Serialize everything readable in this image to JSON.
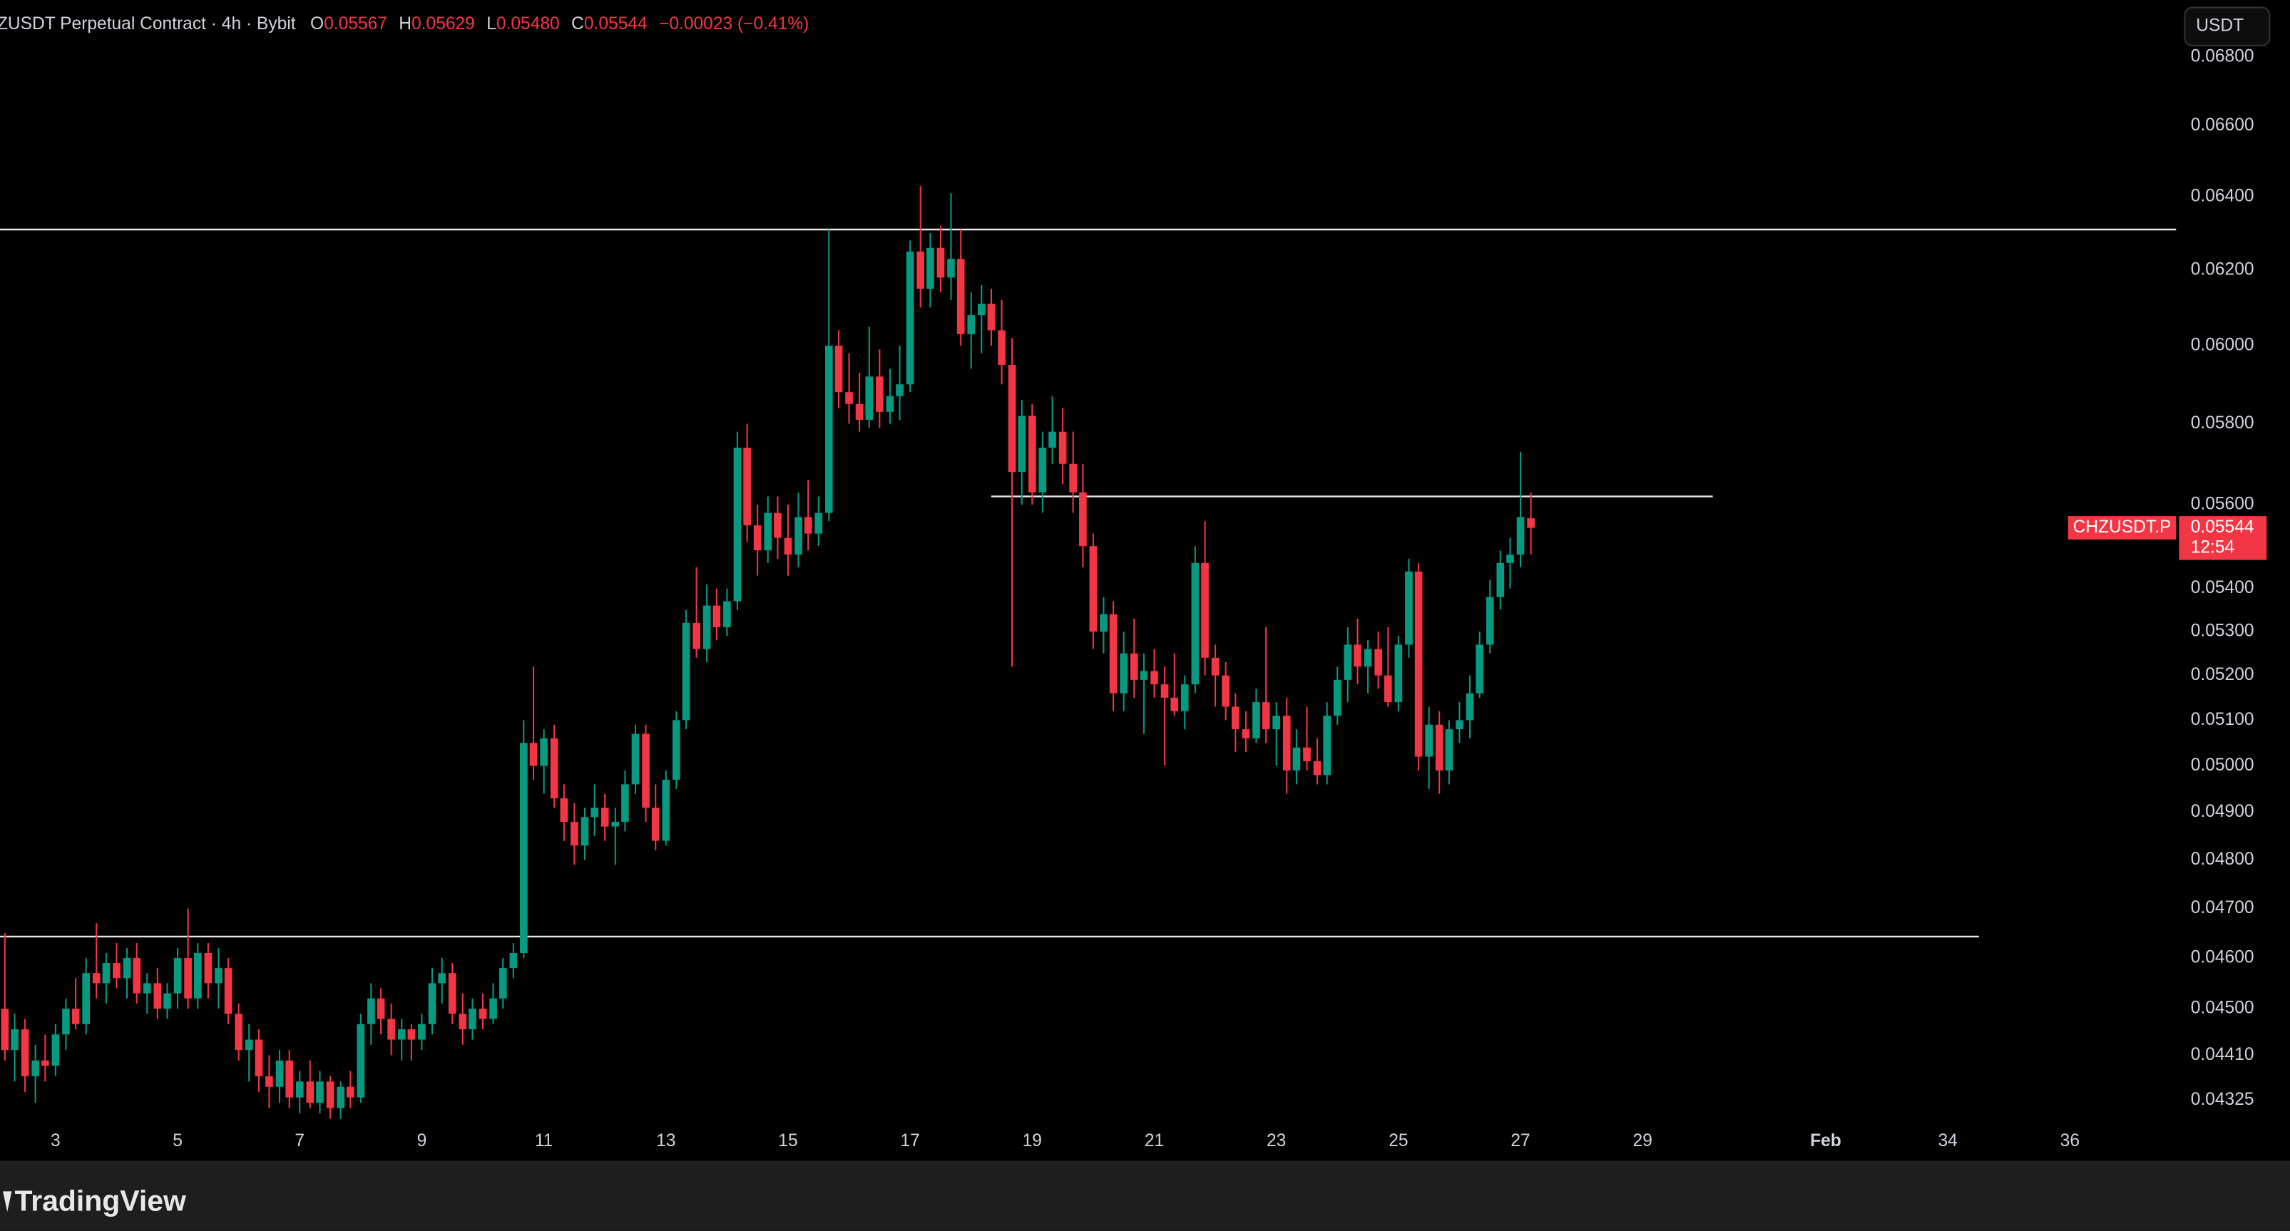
{
  "chart_data": {
    "type": "candlestick",
    "title": "ZUSDT Perpetual Contract · 4h · Bybit",
    "ohlc_header": [
      {
        "key": "O",
        "value": "0.05567"
      },
      {
        "key": "H",
        "value": "0.05629"
      },
      {
        "key": "L",
        "value": "0.05480"
      },
      {
        "key": "C",
        "value": "0.05544"
      }
    ],
    "change": "−0.00023 (−0.41%)",
    "currency_button": "USDT",
    "price_tag": {
      "symbol": "CHZUSDT.P",
      "price": "0.05544",
      "countdown": "12:54"
    },
    "brand": "TradingView",
    "up_color": "#089981",
    "down_color": "#f23645",
    "log_scale": true,
    "grid": false,
    "xlim": [
      2.09,
      37.74
    ],
    "xticks": [
      3,
      5,
      7,
      9,
      11,
      13,
      15,
      17,
      19,
      21,
      23,
      25,
      27,
      29,
      {
        "value": 32,
        "label": "Feb"
      },
      34,
      36
    ],
    "ylim": [
      0.0428,
      0.0697
    ],
    "yticks": [
      {
        "value": 0.068,
        "label": "0.06800"
      },
      {
        "value": 0.066,
        "label": "0.06600"
      },
      {
        "value": 0.064,
        "label": "0.06400"
      },
      {
        "value": 0.062,
        "label": "0.06200"
      },
      {
        "value": 0.06,
        "label": "0.06000"
      },
      {
        "value": 0.058,
        "label": "0.05800"
      },
      {
        "value": 0.056,
        "label": "0.05600"
      },
      {
        "value": 0.054,
        "label": "0.05400"
      },
      {
        "value": 0.053,
        "label": "0.05300"
      },
      {
        "value": 0.052,
        "label": "0.05200"
      },
      {
        "value": 0.051,
        "label": "0.05100"
      },
      {
        "value": 0.05,
        "label": "0.05000"
      },
      {
        "value": 0.049,
        "label": "0.04900"
      },
      {
        "value": 0.048,
        "label": "0.04800"
      },
      {
        "value": 0.047,
        "label": "0.04700"
      },
      {
        "value": 0.046,
        "label": "0.04600"
      },
      {
        "value": 0.045,
        "label": "0.04500"
      },
      {
        "value": 0.0441,
        "label": "0.04410"
      },
      {
        "value": 0.04325,
        "label": "0.04325"
      }
    ],
    "levels": [
      {
        "value": 0.0631,
        "x": [
          2.09,
          37.74
        ]
      },
      {
        "value": 0.0562,
        "x": [
          18.33,
          30.15
        ]
      },
      {
        "value": 0.04643,
        "x": [
          2.09,
          34.51
        ]
      }
    ],
    "candles": [
      [
        2.17,
        0.045,
        0.0465,
        0.044,
        0.0442
      ],
      [
        2.33,
        0.0442,
        0.0449,
        0.0436,
        0.0446
      ],
      [
        2.5,
        0.0446,
        0.0448,
        0.0434,
        0.0437
      ],
      [
        2.67,
        0.0437,
        0.0443,
        0.0432,
        0.044
      ],
      [
        2.83,
        0.044,
        0.0445,
        0.0436,
        0.0439
      ],
      [
        3,
        0.0439,
        0.0447,
        0.0437,
        0.0445
      ],
      [
        3.17,
        0.0445,
        0.0452,
        0.0442,
        0.045
      ],
      [
        3.33,
        0.045,
        0.0456,
        0.0446,
        0.0447
      ],
      [
        3.5,
        0.0447,
        0.046,
        0.0445,
        0.0457
      ],
      [
        3.67,
        0.0457,
        0.0467,
        0.0452,
        0.0455
      ],
      [
        3.83,
        0.0455,
        0.0461,
        0.0451,
        0.0459
      ],
      [
        4,
        0.0459,
        0.0463,
        0.0454,
        0.0456
      ],
      [
        4.17,
        0.0456,
        0.0462,
        0.0452,
        0.046
      ],
      [
        4.33,
        0.046,
        0.0463,
        0.0451,
        0.0453
      ],
      [
        4.5,
        0.0453,
        0.0457,
        0.0449,
        0.0455
      ],
      [
        4.67,
        0.0455,
        0.0458,
        0.0448,
        0.045
      ],
      [
        4.83,
        0.045,
        0.0455,
        0.0448,
        0.0453
      ],
      [
        5,
        0.0453,
        0.0462,
        0.045,
        0.046
      ],
      [
        5.17,
        0.046,
        0.047,
        0.045,
        0.0452
      ],
      [
        5.33,
        0.0452,
        0.0463,
        0.045,
        0.0461
      ],
      [
        5.5,
        0.0461,
        0.0463,
        0.0452,
        0.0455
      ],
      [
        5.67,
        0.0455,
        0.0462,
        0.045,
        0.0458
      ],
      [
        5.83,
        0.0458,
        0.046,
        0.0447,
        0.0449
      ],
      [
        6,
        0.0449,
        0.0451,
        0.044,
        0.0442
      ],
      [
        6.17,
        0.0442,
        0.0447,
        0.0436,
        0.0444
      ],
      [
        6.33,
        0.0444,
        0.0446,
        0.0434,
        0.0437
      ],
      [
        6.5,
        0.0437,
        0.0441,
        0.0431,
        0.0435
      ],
      [
        6.67,
        0.0435,
        0.0442,
        0.0432,
        0.044
      ],
      [
        6.83,
        0.044,
        0.0442,
        0.0431,
        0.0433
      ],
      [
        7,
        0.0433,
        0.0438,
        0.043,
        0.0436
      ],
      [
        7.17,
        0.0436,
        0.044,
        0.0431,
        0.0432
      ],
      [
        7.33,
        0.0432,
        0.0438,
        0.043,
        0.0436
      ],
      [
        7.5,
        0.0436,
        0.0437,
        0.0429,
        0.0431
      ],
      [
        7.67,
        0.0431,
        0.0436,
        0.0429,
        0.0435
      ],
      [
        7.83,
        0.0435,
        0.0438,
        0.0431,
        0.0433
      ],
      [
        8,
        0.0433,
        0.0449,
        0.0432,
        0.0447
      ],
      [
        8.17,
        0.0447,
        0.0455,
        0.0443,
        0.0452
      ],
      [
        8.33,
        0.0452,
        0.0454,
        0.0445,
        0.0448
      ],
      [
        8.5,
        0.0448,
        0.0451,
        0.0441,
        0.0444
      ],
      [
        8.67,
        0.0444,
        0.0448,
        0.044,
        0.0446
      ],
      [
        8.83,
        0.0446,
        0.0447,
        0.044,
        0.0444
      ],
      [
        9,
        0.0444,
        0.0449,
        0.0442,
        0.0447
      ],
      [
        9.17,
        0.0447,
        0.0458,
        0.0445,
        0.0455
      ],
      [
        9.33,
        0.0455,
        0.046,
        0.0451,
        0.0457
      ],
      [
        9.5,
        0.0457,
        0.0459,
        0.0447,
        0.0449
      ],
      [
        9.67,
        0.0449,
        0.0453,
        0.0443,
        0.0446
      ],
      [
        9.83,
        0.0446,
        0.0452,
        0.0444,
        0.045
      ],
      [
        10,
        0.045,
        0.0453,
        0.0446,
        0.0448
      ],
      [
        10.17,
        0.0448,
        0.0455,
        0.0447,
        0.0452
      ],
      [
        10.33,
        0.0452,
        0.046,
        0.045,
        0.0458
      ],
      [
        10.5,
        0.0458,
        0.0463,
        0.0456,
        0.0461
      ],
      [
        10.67,
        0.0461,
        0.051,
        0.046,
        0.0505
      ],
      [
        10.83,
        0.0505,
        0.0522,
        0.0497,
        0.05
      ],
      [
        11,
        0.05,
        0.0508,
        0.0494,
        0.0506
      ],
      [
        11.17,
        0.0506,
        0.0509,
        0.0491,
        0.0493
      ],
      [
        11.33,
        0.0493,
        0.0496,
        0.0484,
        0.0488
      ],
      [
        11.5,
        0.0488,
        0.0492,
        0.0479,
        0.0483
      ],
      [
        11.67,
        0.0483,
        0.0491,
        0.048,
        0.0489
      ],
      [
        11.83,
        0.0489,
        0.0496,
        0.0485,
        0.0491
      ],
      [
        12,
        0.0491,
        0.0494,
        0.0484,
        0.0487
      ],
      [
        12.17,
        0.0487,
        0.0491,
        0.0479,
        0.0488
      ],
      [
        12.33,
        0.0488,
        0.0499,
        0.0486,
        0.0496
      ],
      [
        12.5,
        0.0496,
        0.0509,
        0.0494,
        0.0507
      ],
      [
        12.67,
        0.0507,
        0.0509,
        0.0488,
        0.0491
      ],
      [
        12.83,
        0.0491,
        0.0496,
        0.0482,
        0.0484
      ],
      [
        13,
        0.0484,
        0.0499,
        0.0483,
        0.0497
      ],
      [
        13.17,
        0.0497,
        0.0512,
        0.0495,
        0.051
      ],
      [
        13.33,
        0.051,
        0.0535,
        0.0508,
        0.0532
      ],
      [
        13.5,
        0.0532,
        0.0545,
        0.0524,
        0.0526
      ],
      [
        13.67,
        0.0526,
        0.0541,
        0.0523,
        0.0536
      ],
      [
        13.83,
        0.0536,
        0.054,
        0.0528,
        0.0531
      ],
      [
        14,
        0.0531,
        0.054,
        0.0529,
        0.0537
      ],
      [
        14.17,
        0.0537,
        0.0578,
        0.0535,
        0.0574
      ],
      [
        14.33,
        0.0574,
        0.058,
        0.0551,
        0.0555
      ],
      [
        14.5,
        0.0555,
        0.056,
        0.0543,
        0.0549
      ],
      [
        14.67,
        0.0549,
        0.0562,
        0.0546,
        0.0558
      ],
      [
        14.83,
        0.0558,
        0.0562,
        0.0547,
        0.0552
      ],
      [
        15,
        0.0552,
        0.056,
        0.0543,
        0.0548
      ],
      [
        15.17,
        0.0548,
        0.0563,
        0.0545,
        0.0557
      ],
      [
        15.33,
        0.0557,
        0.0566,
        0.0549,
        0.0553
      ],
      [
        15.5,
        0.0553,
        0.0562,
        0.055,
        0.0558
      ],
      [
        15.67,
        0.0558,
        0.0631,
        0.0556,
        0.06
      ],
      [
        15.83,
        0.06,
        0.0604,
        0.0584,
        0.0588
      ],
      [
        16,
        0.0588,
        0.0598,
        0.058,
        0.0585
      ],
      [
        16.17,
        0.0585,
        0.0593,
        0.0578,
        0.0581
      ],
      [
        16.33,
        0.0581,
        0.0605,
        0.0579,
        0.0592
      ],
      [
        16.5,
        0.0592,
        0.0599,
        0.0579,
        0.0583
      ],
      [
        16.67,
        0.0583,
        0.0594,
        0.058,
        0.0587
      ],
      [
        16.83,
        0.0587,
        0.06,
        0.0581,
        0.059
      ],
      [
        17,
        0.059,
        0.0628,
        0.0588,
        0.0625
      ],
      [
        17.17,
        0.0625,
        0.0643,
        0.061,
        0.0615
      ],
      [
        17.33,
        0.0615,
        0.063,
        0.061,
        0.0626
      ],
      [
        17.5,
        0.0626,
        0.0632,
        0.0614,
        0.0618
      ],
      [
        17.67,
        0.0618,
        0.0641,
        0.0612,
        0.0623
      ],
      [
        17.83,
        0.0623,
        0.0631,
        0.06,
        0.0603
      ],
      [
        18,
        0.0603,
        0.0614,
        0.0594,
        0.0608
      ],
      [
        18.17,
        0.0608,
        0.0616,
        0.0598,
        0.0611
      ],
      [
        18.33,
        0.0611,
        0.0615,
        0.06,
        0.0604
      ],
      [
        18.5,
        0.0604,
        0.0612,
        0.059,
        0.0595
      ],
      [
        18.67,
        0.0595,
        0.0602,
        0.0522,
        0.0568
      ],
      [
        18.83,
        0.0568,
        0.0586,
        0.056,
        0.0582
      ],
      [
        19,
        0.0582,
        0.0585,
        0.056,
        0.0563
      ],
      [
        19.17,
        0.0563,
        0.0578,
        0.0558,
        0.0574
      ],
      [
        19.33,
        0.0574,
        0.0587,
        0.057,
        0.0578
      ],
      [
        19.5,
        0.0578,
        0.0584,
        0.0565,
        0.057
      ],
      [
        19.67,
        0.057,
        0.0578,
        0.0558,
        0.0563
      ],
      [
        19.83,
        0.0563,
        0.057,
        0.0545,
        0.055
      ],
      [
        20,
        0.055,
        0.0553,
        0.0526,
        0.053
      ],
      [
        20.17,
        0.053,
        0.0538,
        0.0525,
        0.0534
      ],
      [
        20.33,
        0.0534,
        0.0537,
        0.0512,
        0.0516
      ],
      [
        20.5,
        0.0516,
        0.053,
        0.0512,
        0.0525
      ],
      [
        20.67,
        0.0525,
        0.0533,
        0.0515,
        0.0519
      ],
      [
        20.83,
        0.0519,
        0.0525,
        0.0507,
        0.0521
      ],
      [
        21,
        0.0521,
        0.0526,
        0.0515,
        0.0518
      ],
      [
        21.17,
        0.0518,
        0.0522,
        0.05,
        0.0515
      ],
      [
        21.33,
        0.0515,
        0.0525,
        0.0511,
        0.0512
      ],
      [
        21.5,
        0.0512,
        0.052,
        0.0508,
        0.0518
      ],
      [
        21.67,
        0.0518,
        0.055,
        0.0516,
        0.0546
      ],
      [
        21.83,
        0.0546,
        0.0556,
        0.052,
        0.0524
      ],
      [
        22,
        0.0524,
        0.0527,
        0.0513,
        0.052
      ],
      [
        22.17,
        0.052,
        0.0523,
        0.051,
        0.0513
      ],
      [
        22.33,
        0.0513,
        0.0516,
        0.0503,
        0.0508
      ],
      [
        22.5,
        0.0508,
        0.0512,
        0.0503,
        0.0506
      ],
      [
        22.67,
        0.0506,
        0.0517,
        0.0505,
        0.0514
      ],
      [
        22.83,
        0.0514,
        0.0531,
        0.0505,
        0.0508
      ],
      [
        23,
        0.0508,
        0.0514,
        0.05,
        0.0511
      ],
      [
        23.17,
        0.0511,
        0.0515,
        0.0494,
        0.0499
      ],
      [
        23.33,
        0.0499,
        0.0508,
        0.0496,
        0.0504
      ],
      [
        23.5,
        0.0504,
        0.0513,
        0.0499,
        0.0501
      ],
      [
        23.67,
        0.0501,
        0.0506,
        0.0496,
        0.0498
      ],
      [
        23.83,
        0.0498,
        0.0514,
        0.0496,
        0.0511
      ],
      [
        24,
        0.0511,
        0.0522,
        0.0509,
        0.0519
      ],
      [
        24.17,
        0.0519,
        0.0531,
        0.0514,
        0.0527
      ],
      [
        24.33,
        0.0527,
        0.0533,
        0.0518,
        0.0522
      ],
      [
        24.5,
        0.0522,
        0.0528,
        0.0516,
        0.0526
      ],
      [
        24.67,
        0.0526,
        0.053,
        0.0517,
        0.052
      ],
      [
        24.83,
        0.052,
        0.0531,
        0.0513,
        0.0514
      ],
      [
        25,
        0.0514,
        0.0529,
        0.0512,
        0.0527
      ],
      [
        25.17,
        0.0527,
        0.0547,
        0.0524,
        0.0544
      ],
      [
        25.33,
        0.0544,
        0.0546,
        0.0499,
        0.0502
      ],
      [
        25.5,
        0.0502,
        0.0513,
        0.0495,
        0.0509
      ],
      [
        25.67,
        0.0509,
        0.0512,
        0.0494,
        0.0499
      ],
      [
        25.83,
        0.0499,
        0.051,
        0.0496,
        0.0508
      ],
      [
        26,
        0.0508,
        0.0514,
        0.0505,
        0.051
      ],
      [
        26.17,
        0.051,
        0.052,
        0.0506,
        0.0516
      ],
      [
        26.33,
        0.0516,
        0.053,
        0.0515,
        0.0527
      ],
      [
        26.5,
        0.0527,
        0.0542,
        0.0525,
        0.0538
      ],
      [
        26.67,
        0.0538,
        0.0549,
        0.0535,
        0.0546
      ],
      [
        26.83,
        0.0546,
        0.0552,
        0.054,
        0.0548
      ],
      [
        27,
        0.0548,
        0.0573,
        0.0545,
        0.0557
      ],
      [
        27.17,
        0.05567,
        0.05629,
        0.0548,
        0.05544
      ]
    ]
  }
}
